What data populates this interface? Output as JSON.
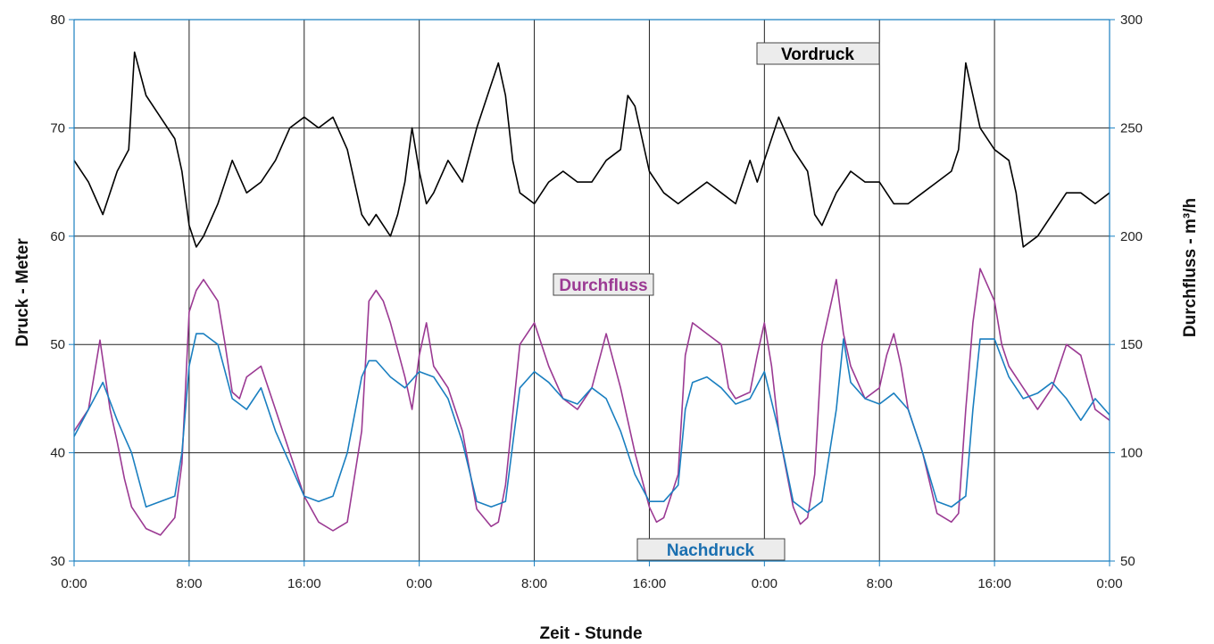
{
  "chart_data": {
    "type": "line",
    "xlabel": "Zeit - Stunde",
    "ylabel_left": "Druck - Meter",
    "ylabel_right": "Durchfluss - m³/h",
    "x_ticks": [
      "0:00",
      "8:00",
      "16:00",
      "0:00",
      "8:00",
      "16:00",
      "0:00",
      "8:00",
      "16:00",
      "0:00"
    ],
    "x_unit": "hour",
    "xlim": [
      0,
      72
    ],
    "ylim_left": [
      30,
      80
    ],
    "ylim_right": [
      50,
      300
    ],
    "yticks_left": [
      30,
      40,
      50,
      60,
      70,
      80
    ],
    "yticks_right": [
      50,
      100,
      150,
      200,
      250,
      300
    ],
    "grid": true,
    "series": [
      {
        "name": "Vordruck",
        "axis": "left",
        "color": "#000000",
        "x": [
          0,
          1,
          2,
          3,
          3.8,
          4.2,
          5,
          6,
          7,
          7.5,
          8,
          8.5,
          9,
          10,
          11,
          12,
          13,
          14,
          15,
          16,
          17,
          18,
          19,
          20,
          20.5,
          21,
          22,
          22.5,
          23,
          23.5,
          24,
          24.5,
          25,
          26,
          27,
          28,
          29,
          29.5,
          30,
          30.5,
          31,
          32,
          33,
          34,
          35,
          36,
          37,
          38,
          38.5,
          39,
          40,
          41,
          42,
          43,
          44,
          45,
          46,
          47,
          47.5,
          48,
          49,
          50,
          51,
          51.5,
          52,
          53,
          54,
          55,
          56,
          57,
          58,
          59,
          60,
          61,
          61.5,
          62,
          63,
          64,
          65,
          65.5,
          66,
          67,
          68,
          69,
          70,
          71,
          72
        ],
        "y": [
          67,
          65,
          62,
          66,
          68,
          77,
          73,
          71,
          69,
          66,
          61,
          59,
          60,
          63,
          67,
          64,
          65,
          67,
          70,
          71,
          70,
          71,
          68,
          62,
          61,
          62,
          60,
          62,
          65,
          70,
          66,
          63,
          64,
          67,
          65,
          70,
          74,
          76,
          73,
          67,
          64,
          63,
          65,
          66,
          65,
          65,
          67,
          68,
          73,
          72,
          66,
          64,
          63,
          64,
          65,
          64,
          63,
          67,
          65,
          67,
          71,
          68,
          66,
          62,
          61,
          64,
          66,
          65,
          65,
          63,
          63,
          64,
          65,
          66,
          68,
          76,
          70,
          68,
          67,
          64,
          59,
          60,
          62,
          64,
          64,
          63,
          64
        ]
      },
      {
        "name": "Durchfluss",
        "axis": "right",
        "color": "#9b3a93",
        "x": [
          0,
          1,
          1.8,
          2.5,
          3,
          3.5,
          4,
          5,
          6,
          7,
          7.5,
          8,
          8.5,
          9,
          10,
          10.5,
          11,
          11.5,
          12,
          13,
          14,
          15,
          16,
          17,
          18,
          19,
          20,
          20.5,
          21,
          21.5,
          22,
          23,
          23.5,
          24,
          24.5,
          25,
          26,
          27,
          28,
          29,
          29.5,
          30,
          31,
          32,
          33,
          34,
          35,
          36,
          37,
          38,
          39,
          40,
          40.5,
          41,
          42,
          42.5,
          43,
          44,
          45,
          45.5,
          46,
          47,
          47.5,
          48,
          48.5,
          49,
          50,
          50.5,
          51,
          51.5,
          52,
          53,
          53.5,
          54,
          55,
          56,
          56.5,
          57,
          57.5,
          58,
          59,
          60,
          61,
          61.5,
          62,
          62.5,
          63,
          64,
          64.5,
          65,
          66,
          67,
          68,
          69,
          70,
          71,
          72
        ],
        "y": [
          110,
          120,
          152,
          120,
          105,
          88,
          75,
          65,
          62,
          70,
          95,
          165,
          175,
          180,
          170,
          150,
          128,
          125,
          135,
          140,
          120,
          100,
          80,
          68,
          64,
          68,
          110,
          170,
          175,
          170,
          160,
          135,
          120,
          145,
          160,
          140,
          130,
          110,
          74,
          66,
          68,
          85,
          150,
          160,
          140,
          125,
          120,
          130,
          155,
          130,
          100,
          75,
          68,
          70,
          90,
          145,
          160,
          155,
          150,
          130,
          125,
          128,
          145,
          160,
          140,
          110,
          75,
          67,
          70,
          90,
          150,
          180,
          155,
          140,
          125,
          130,
          145,
          155,
          140,
          120,
          100,
          72,
          68,
          72,
          120,
          160,
          185,
          170,
          150,
          140,
          130,
          120,
          130,
          150,
          145,
          120,
          115
        ]
      },
      {
        "name": "Nachdruck",
        "axis": "left",
        "color": "#1a7fc0",
        "x": [
          0,
          1,
          2,
          3,
          4,
          5,
          6,
          7,
          7.5,
          8,
          8.5,
          9,
          10,
          11,
          12,
          13,
          14,
          15,
          16,
          17,
          18,
          19,
          20,
          20.5,
          21,
          22,
          23,
          24,
          25,
          26,
          27,
          28,
          29,
          30,
          31,
          32,
          33,
          34,
          35,
          36,
          37,
          38,
          39,
          40,
          41,
          42,
          42.5,
          43,
          44,
          45,
          46,
          47,
          48,
          49,
          50,
          51,
          52,
          53,
          53.5,
          54,
          55,
          56,
          57,
          58,
          59,
          60,
          61,
          62,
          62.5,
          63,
          64,
          65,
          66,
          67,
          68,
          69,
          70,
          71,
          72
        ],
        "y": [
          41.5,
          44,
          46.5,
          43,
          40,
          35,
          35.5,
          36,
          40,
          48,
          51,
          51,
          50,
          45,
          44,
          46,
          42,
          39,
          36,
          35.5,
          36,
          40,
          47,
          48.5,
          48.5,
          47,
          46,
          47.5,
          47,
          45,
          41,
          35.5,
          35,
          35.5,
          46,
          47.5,
          46.5,
          45,
          44.5,
          46,
          45,
          42,
          38,
          35.5,
          35.5,
          37,
          44,
          46.5,
          47,
          46,
          44.5,
          45,
          47.5,
          42,
          35.5,
          34.5,
          35.5,
          44,
          50.5,
          46.5,
          45,
          44.5,
          45.5,
          44,
          40,
          35.5,
          35,
          36,
          44,
          50.5,
          50.5,
          47,
          45,
          45.5,
          46.5,
          45,
          43,
          45,
          43.5
        ]
      }
    ],
    "annotations": {
      "vordruck": "Vordruck",
      "durchfluss": "Durchfluss",
      "nachdruck": "Nachdruck"
    }
  }
}
